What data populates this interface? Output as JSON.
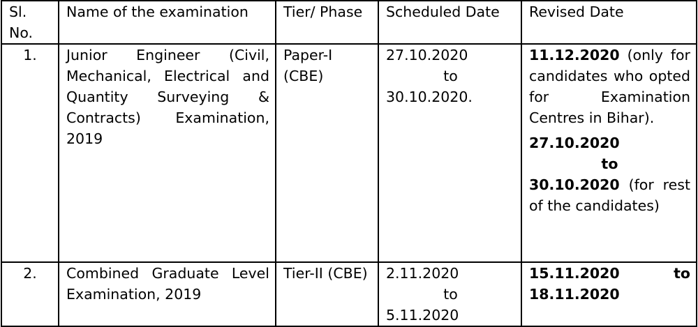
{
  "table": {
    "header": [
      "Sl. No.",
      "Name of the examination",
      "Tier/ Phase",
      "Scheduled Date",
      "Revised Date"
    ],
    "rows": [
      {
        "sl": "1.",
        "name": "Junior Engineer (Civil, Mechanical, Electrical and Quantity Surveying & Contracts) Examination, 2019",
        "tier": "Paper-I (CBE)",
        "scheduled": [
          "27.10.2020",
          "to",
          "30.10.2020."
        ],
        "revised": [
          {
            "bold": [
              "11.12.2020"
            ],
            "text": "(only for candidates who opted for Examination Centres in Bihar)."
          },
          {
            "bold": [
              "27.10.2020",
              "to",
              "30.10.2020"
            ],
            "text": "(for rest of the candidates)"
          }
        ]
      },
      {
        "sl": "2.",
        "name": "Combined Graduate Level Examination, 2019",
        "tier": "Tier-II (CBE)",
        "scheduled": [
          "2.11.2020",
          "to",
          "5.11.2020"
        ],
        "revised": [
          {
            "bold": [
              "15.11.2020 to 18.11.2020"
            ]
          }
        ]
      }
    ]
  }
}
